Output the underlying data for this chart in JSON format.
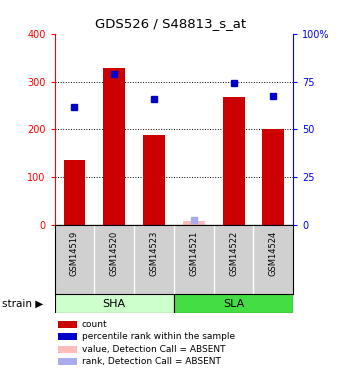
{
  "title": "GDS526 / S48813_s_at",
  "samples": [
    "GSM14519",
    "GSM14520",
    "GSM14523",
    "GSM14521",
    "GSM14522",
    "GSM14524"
  ],
  "strains": [
    "SHA",
    "SHA",
    "SHA",
    "SLA",
    "SLA",
    "SLA"
  ],
  "strain_labels": [
    "SHA",
    "SLA"
  ],
  "sha_color": "#ccffcc",
  "sla_color": "#44dd44",
  "bar_values": [
    135,
    328,
    188,
    8,
    268,
    200
  ],
  "bar_absent": [
    false,
    false,
    false,
    true,
    false,
    false
  ],
  "dot_values": [
    61.5,
    79.0,
    66.0,
    2.5,
    74.5,
    67.5
  ],
  "dot_absent": [
    false,
    false,
    false,
    true,
    false,
    false
  ],
  "bar_color": "#cc0000",
  "bar_absent_color": "#ffbbbb",
  "dot_color": "#0000cc",
  "dot_absent_color": "#aaaaee",
  "ylim_left": [
    0,
    400
  ],
  "ylim_right": [
    0,
    100
  ],
  "yticks_left": [
    0,
    100,
    200,
    300,
    400
  ],
  "yticks_right": [
    0,
    25,
    50,
    75,
    100
  ],
  "ytick_labels_right": [
    "0",
    "25",
    "50",
    "75",
    "100%"
  ],
  "gridlines": [
    100,
    200,
    300
  ],
  "bar_width": 0.55,
  "sample_box_color": "#d0d0d0",
  "legend_items": [
    {
      "color": "#cc0000",
      "label": "count"
    },
    {
      "color": "#0000cc",
      "label": "percentile rank within the sample"
    },
    {
      "color": "#ffbbbb",
      "label": "value, Detection Call = ABSENT"
    },
    {
      "color": "#aaaaee",
      "label": "rank, Detection Call = ABSENT"
    }
  ]
}
